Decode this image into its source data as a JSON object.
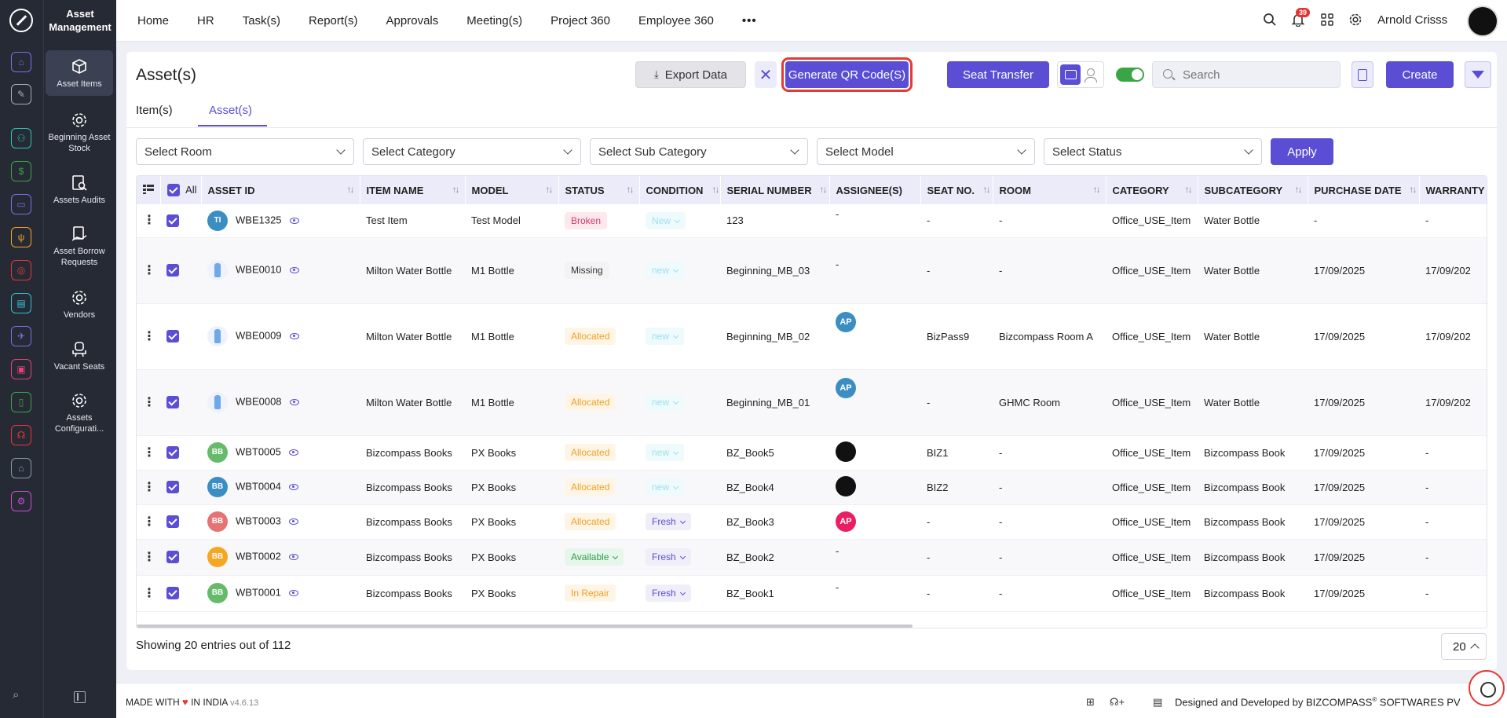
{
  "sidebar": {
    "module_title": "Asset Management",
    "items": [
      {
        "label": "Asset Items"
      },
      {
        "label": "Beginning Asset Stock"
      },
      {
        "label": "Assets Audits"
      },
      {
        "label": "Asset Borrow Requests"
      },
      {
        "label": "Vendors"
      },
      {
        "label": "Vacant Seats"
      },
      {
        "label": "Assets Configurati..."
      }
    ]
  },
  "nav": {
    "items": [
      "Home",
      "HR",
      "Task(s)",
      "Report(s)",
      "Approvals",
      "Meeting(s)",
      "Project 360",
      "Employee 360"
    ],
    "more": "•••"
  },
  "topbar": {
    "notification_count": "39",
    "user_name": "Arnold Crisss"
  },
  "page": {
    "title": "Asset(s)",
    "export_label": "Export Data",
    "clear_label": "✕",
    "qr_label": "Generate QR Code(S)",
    "seat_transfer_label": "Seat Transfer",
    "search_placeholder": "Search",
    "create_label": "Create",
    "tabs": [
      "Item(s)",
      "Asset(s)"
    ],
    "active_tab": "Asset(s)",
    "filters": [
      "Select Room",
      "Select Category",
      "Select Sub Category",
      "Select Model",
      "Select Status"
    ],
    "apply_label": "Apply"
  },
  "table": {
    "all_label": "All",
    "columns": [
      "ASSET ID",
      "ITEM NAME",
      "MODEL",
      "STATUS",
      "CONDITION",
      "SERIAL NUMBER",
      "ASSIGNEE(S)",
      "SEAT NO.",
      "ROOM",
      "CATEGORY",
      "SUBCATEGORY",
      "PURCHASE DATE",
      "WARRANTY"
    ],
    "rows": [
      {
        "avatar": "TI",
        "avatar_color": "#3b8ec2",
        "id": "WBE1325",
        "item": "Test Item",
        "model": "Test Model",
        "status": "Broken",
        "status_type": "broken",
        "condition": "New",
        "cond_type": "new",
        "serial": "123",
        "assignee": "-",
        "seat": "-",
        "room": "-",
        "category": "Office_USE_Item",
        "sub": "Water Bottle",
        "purchase": "-",
        "warranty": "-"
      },
      {
        "avatar": "bottle",
        "id": "WBE0010",
        "item": "Milton Water Bottle",
        "model": "M1 Bottle",
        "status": "Missing",
        "status_type": "missing",
        "condition": "new",
        "cond_type": "new",
        "serial": "Beginning_MB_03",
        "assignee": "-",
        "seat": "-",
        "room": "-",
        "category": "Office_USE_Item",
        "sub": "Water Bottle",
        "purchase": "17/09/2025",
        "warranty": "17/09/202"
      },
      {
        "avatar": "bottle",
        "id": "WBE0009",
        "item": "Milton Water Bottle",
        "model": "M1 Bottle",
        "status": "Allocated",
        "status_type": "alloc",
        "condition": "new",
        "cond_type": "new",
        "serial": "Beginning_MB_02",
        "assignee": "AP",
        "seat": "BizPass9",
        "room": "Bizcompass Room A",
        "category": "Office_USE_Item",
        "sub": "Water Bottle",
        "purchase": "17/09/2025",
        "warranty": "17/09/202"
      },
      {
        "avatar": "bottle",
        "id": "WBE0008",
        "item": "Milton Water Bottle",
        "model": "M1 Bottle",
        "status": "Allocated",
        "status_type": "alloc",
        "condition": "new",
        "cond_type": "new",
        "serial": "Beginning_MB_01",
        "assignee": "AP",
        "seat": "-",
        "room": "GHMC Room",
        "category": "Office_USE_Item",
        "sub": "Water Bottle",
        "purchase": "17/09/2025",
        "warranty": "17/09/202"
      },
      {
        "avatar": "BB",
        "avatar_color": "#66bb6a",
        "id": "WBT0005",
        "item": "Bizcompass Books",
        "model": "PX Books",
        "status": "Allocated",
        "status_type": "alloc",
        "condition": "new",
        "cond_type": "new",
        "serial": "BZ_Book5",
        "assignee": "photo",
        "seat": "BIZ1",
        "room": "-",
        "category": "Office_USE_Item",
        "sub": "Bizcompass Book",
        "purchase": "17/09/2025",
        "warranty": "-"
      },
      {
        "avatar": "BB",
        "avatar_color": "#3b8ec2",
        "id": "WBT0004",
        "item": "Bizcompass Books",
        "model": "PX Books",
        "status": "Allocated",
        "status_type": "alloc",
        "condition": "new",
        "cond_type": "new",
        "serial": "BZ_Book4",
        "assignee": "photo",
        "seat": "BIZ2",
        "room": "-",
        "category": "Office_USE_Item",
        "sub": "Bizcompass Book",
        "purchase": "17/09/2025",
        "warranty": "-"
      },
      {
        "avatar": "BB",
        "avatar_color": "#e57373",
        "id": "WBT0003",
        "item": "Bizcompass Books",
        "model": "PX Books",
        "status": "Allocated",
        "status_type": "alloc",
        "condition": "Fresh",
        "cond_type": "fresh",
        "serial": "BZ_Book3",
        "assignee": "AP-pink",
        "seat": "-",
        "room": "-",
        "category": "Office_USE_Item",
        "sub": "Bizcompass Book",
        "purchase": "17/09/2025",
        "warranty": "-"
      },
      {
        "avatar": "BB",
        "avatar_color": "#f5a623",
        "id": "WBT0002",
        "item": "Bizcompass Books",
        "model": "PX Books",
        "status": "Available",
        "status_type": "avail",
        "condition": "Fresh",
        "cond_type": "fresh",
        "serial": "BZ_Book2",
        "assignee": "-",
        "seat": "-",
        "room": "-",
        "category": "Office_USE_Item",
        "sub": "Bizcompass Book",
        "purchase": "17/09/2025",
        "warranty": "-"
      },
      {
        "avatar": "BB",
        "avatar_color": "#66bb6a",
        "id": "WBT0001",
        "item": "Bizcompass Books",
        "model": "PX Books",
        "status": "In Repair",
        "status_type": "repair",
        "condition": "Fresh",
        "cond_type": "fresh",
        "serial": "BZ_Book1",
        "assignee": "-",
        "seat": "-",
        "room": "-",
        "category": "Office_USE_Item",
        "sub": "Bizcompass Book",
        "purchase": "17/09/2025",
        "warranty": "-"
      }
    ]
  },
  "footer": {
    "showing": "Showing 20 entries out of 112",
    "page_size": "20",
    "made_with_prefix": "MADE WITH",
    "made_with_suffix": "IN INDIA",
    "version": "v4.6.13",
    "designed_by": "Designed and Developed by",
    "company": "BIZCOMPASS",
    "company_suffix": "SOFTWARES PV"
  },
  "colors": {
    "accent": "#5b4ed4",
    "highlight": "#e53935",
    "sidebar": "#262a35"
  }
}
